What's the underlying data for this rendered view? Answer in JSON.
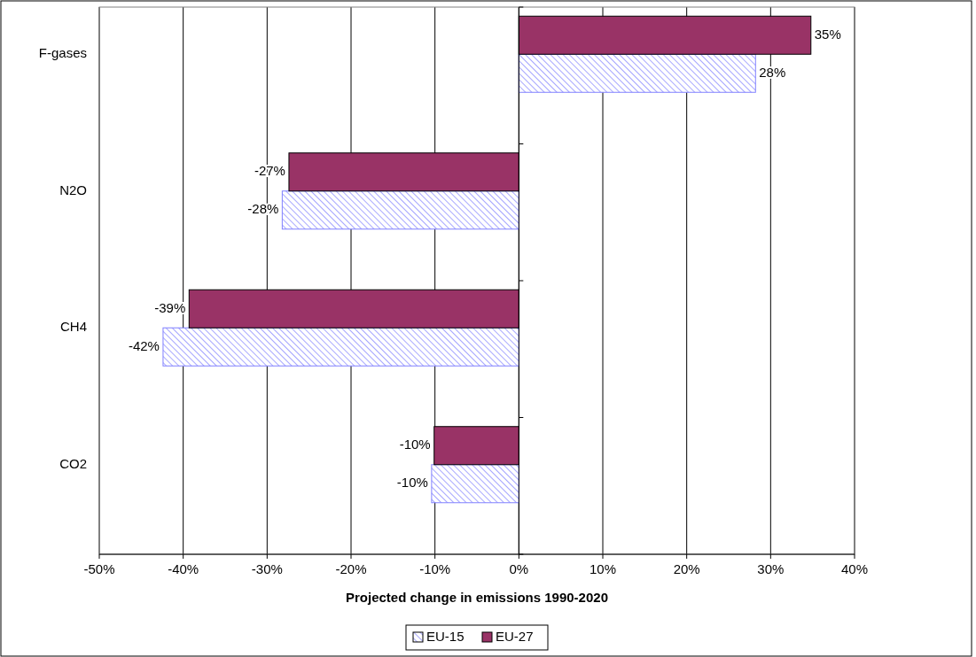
{
  "chart_data": {
    "type": "bar",
    "orientation": "horizontal",
    "xlabel": "Projected change in emissions 1990-2020",
    "categories": [
      "F-gases",
      "N2O",
      "CH4",
      "CO2"
    ],
    "series": [
      {
        "name": "EU-15",
        "color": "#8080ff",
        "values": [
          28.2,
          -28.2,
          -42.4,
          -10.4
        ],
        "value_labels": [
          "28%",
          "-28%",
          "-42%",
          "-10%"
        ]
      },
      {
        "name": "EU-27",
        "color": "#993366",
        "values": [
          34.8,
          -27.4,
          -39.3,
          -10.1
        ],
        "value_labels": [
          "35%",
          "-27%",
          "-39%",
          "-10%"
        ]
      }
    ],
    "xlim": [
      -50,
      40
    ],
    "xticks": [
      {
        "value": -50,
        "label": "-50%"
      },
      {
        "value": -40,
        "label": "-40%"
      },
      {
        "value": -30,
        "label": "-30%"
      },
      {
        "value": -20,
        "label": "-20%"
      },
      {
        "value": -10,
        "label": "-10%"
      },
      {
        "value": 0,
        "label": "0%"
      },
      {
        "value": 10,
        "label": "10%"
      },
      {
        "value": 20,
        "label": "20%"
      },
      {
        "value": 30,
        "label": "30%"
      },
      {
        "value": 40,
        "label": "40%"
      }
    ],
    "grid": "x",
    "legend": "bottom"
  }
}
